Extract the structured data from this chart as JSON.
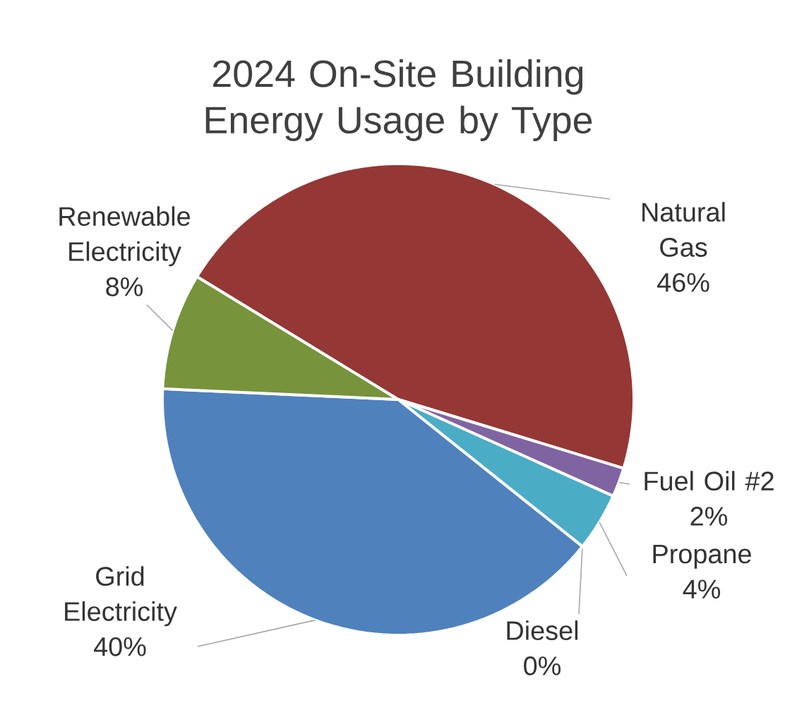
{
  "chart_data": {
    "type": "pie",
    "title": "2024 On-Site Building Energy Usage by Type",
    "categories": [
      "Natural Gas",
      "Fuel Oil #2",
      "Propane",
      "Diesel",
      "Grid Electricity",
      "Renewable Electricity"
    ],
    "values": [
      46,
      2,
      4,
      0,
      40,
      8
    ],
    "value_labels": [
      "46%",
      "2%",
      "4%",
      "0%",
      "40%",
      "8%"
    ],
    "colors": [
      "#953735",
      "#8064a2",
      "#4bacc6",
      "#9bbb59",
      "#4f81bd",
      "#77933c"
    ]
  }
}
